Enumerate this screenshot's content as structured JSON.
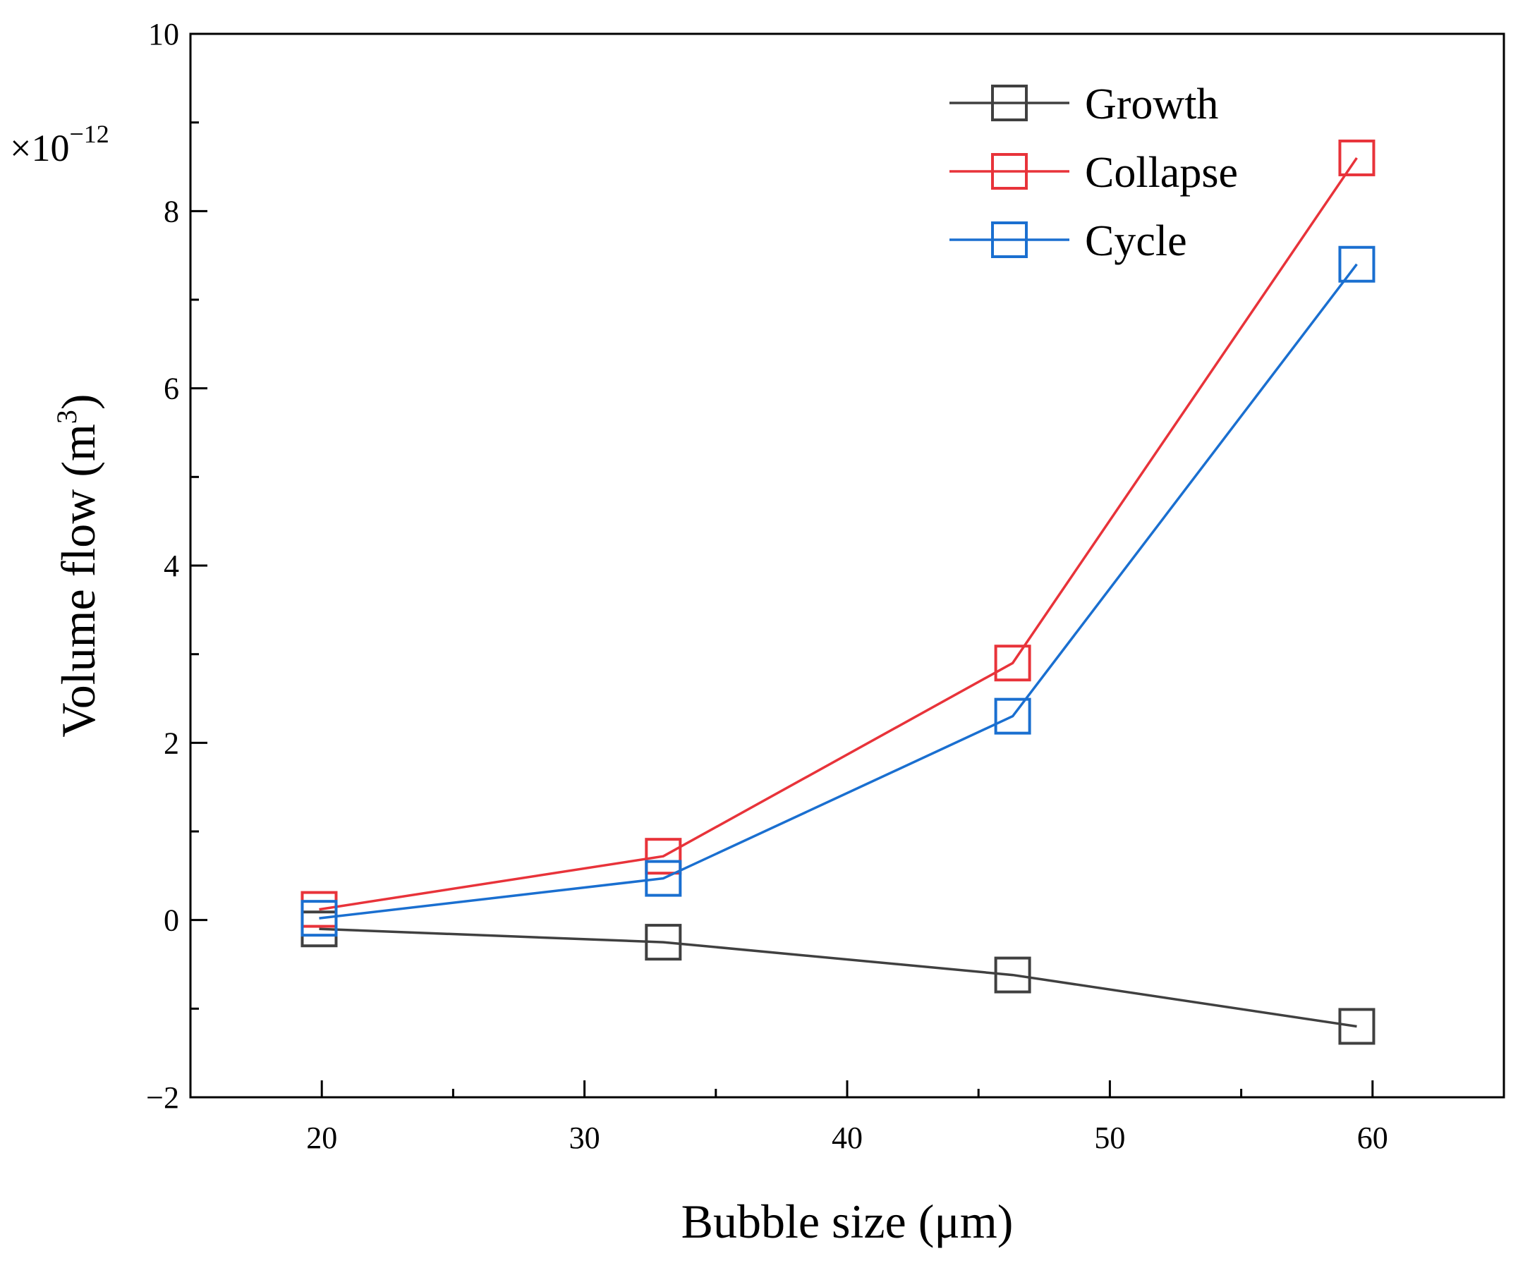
{
  "chart_data": {
    "type": "line",
    "title": "",
    "xlabel": "Bubble size (μm)",
    "ylabel_main": "Volume flow (m",
    "ylabel_sup": "3",
    "ylabel_close": ")",
    "y_scale_base": "×10",
    "y_scale_exponent": "−12",
    "xlim": [
      15,
      65
    ],
    "ylim": [
      -2,
      10
    ],
    "x_ticks": [
      20,
      30,
      40,
      50,
      60
    ],
    "x_tick_labels": [
      "20",
      "30",
      "40",
      "50",
      "60"
    ],
    "y_ticks": [
      -2,
      0,
      2,
      4,
      6,
      8,
      10
    ],
    "y_tick_labels": [
      "−2",
      "0",
      "2",
      "4",
      "6",
      "8",
      "10"
    ],
    "x_minor_ticks": [
      25,
      35,
      45,
      55
    ],
    "y_minor_ticks": [
      -1,
      1,
      3,
      5,
      7,
      9
    ],
    "x": [
      19.9,
      33.0,
      46.3,
      59.4
    ],
    "series": [
      {
        "name": "Growth",
        "color": "#404040",
        "values": [
          -0.1,
          -0.25,
          -0.62,
          -1.2
        ]
      },
      {
        "name": "Collapse",
        "color": "#e8333a",
        "values": [
          0.12,
          0.72,
          2.9,
          8.6
        ]
      },
      {
        "name": "Cycle",
        "color": "#1a6fd0",
        "values": [
          0.02,
          0.47,
          2.3,
          7.4
        ]
      }
    ],
    "legend_position": "top-right",
    "marker": "open-square",
    "grid": false
  }
}
